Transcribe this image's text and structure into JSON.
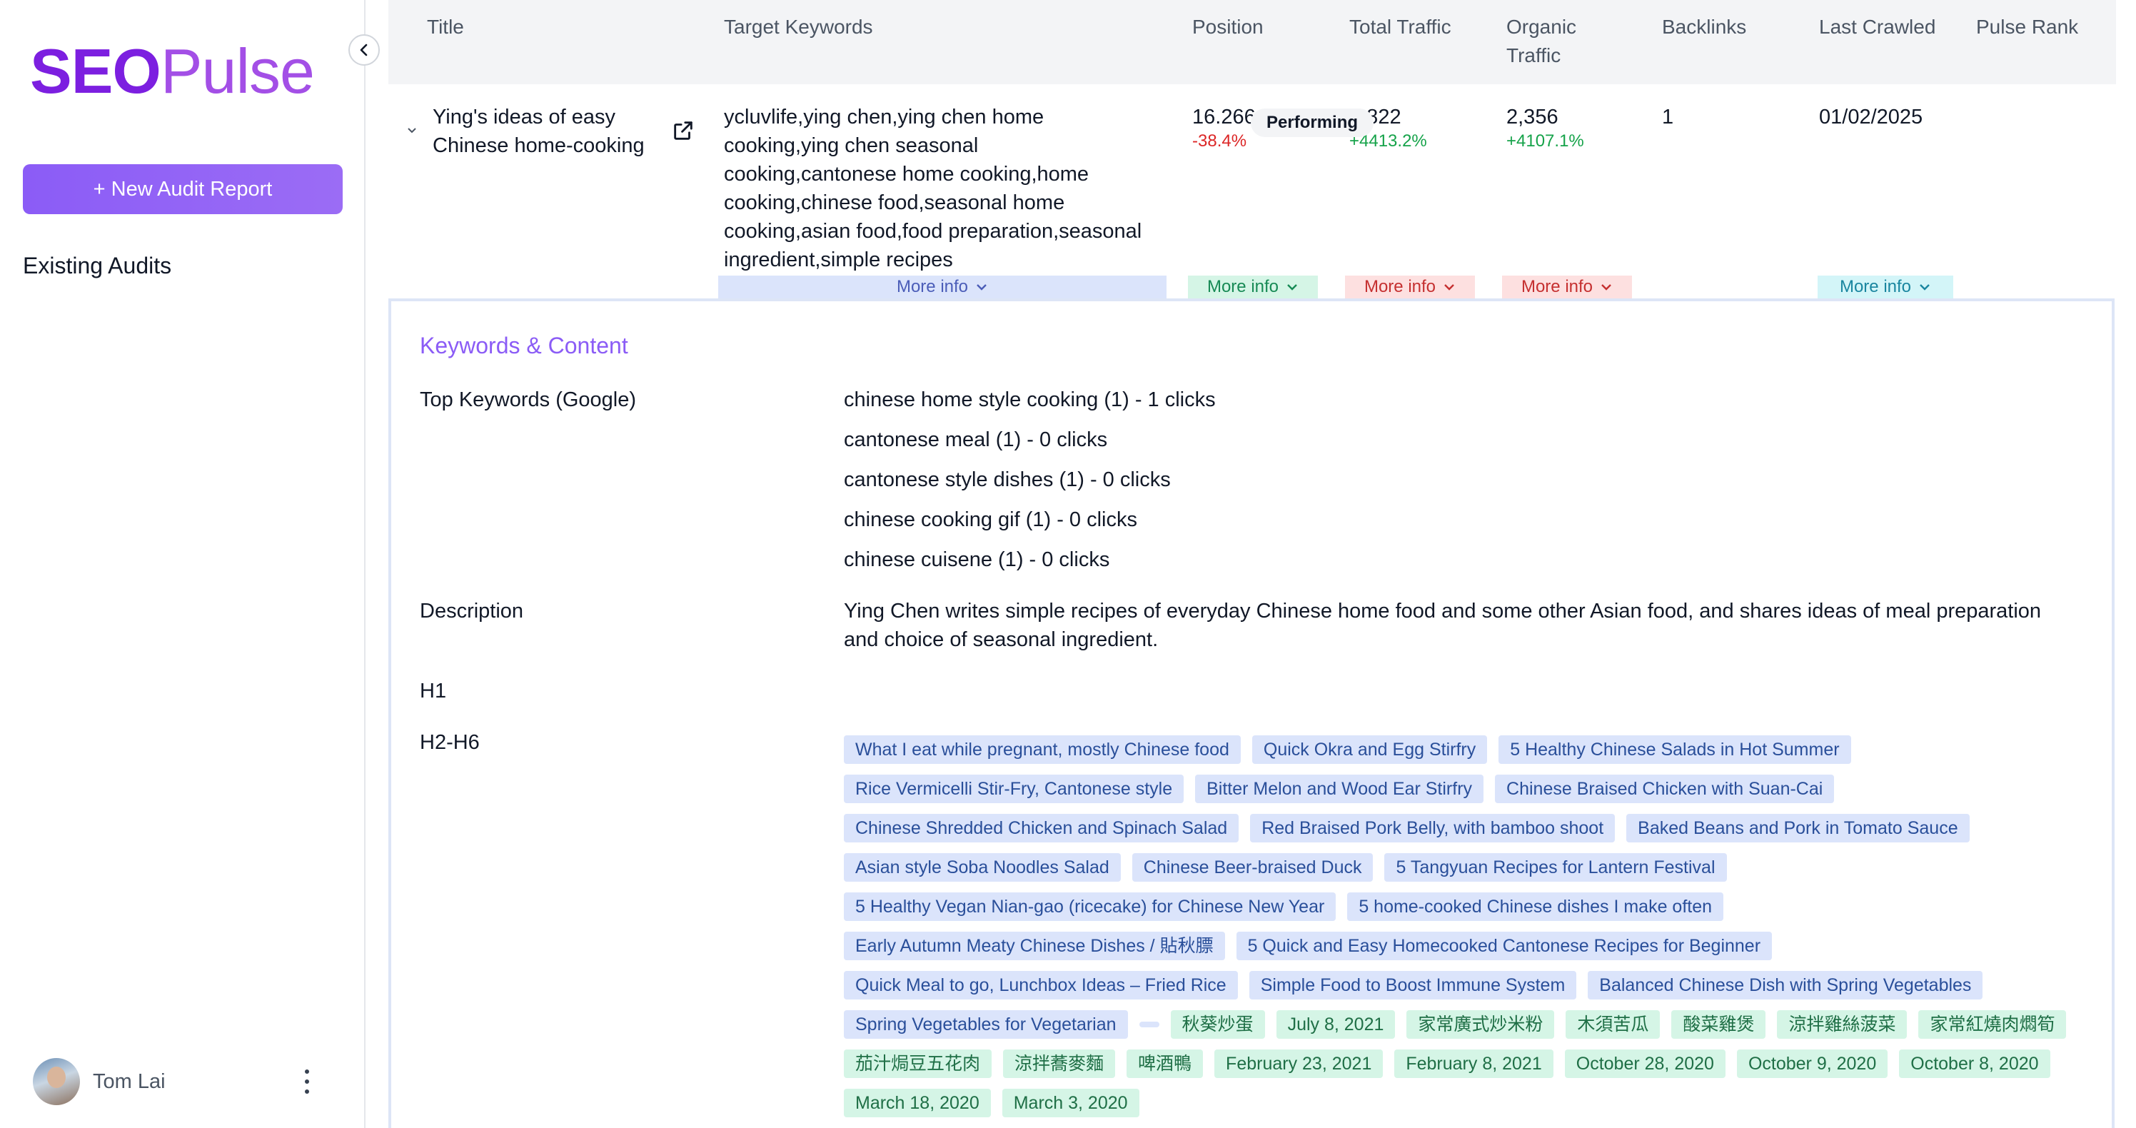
{
  "brand": {
    "seo": "SEO",
    "pulse": "Pulse"
  },
  "sidebar": {
    "new_audit_label": "+ New Audit Report",
    "existing_label": "Existing Audits",
    "user_name": "Tom Lai"
  },
  "table": {
    "headers": {
      "title": "Title",
      "keywords": "Target Keywords",
      "position": "Position",
      "total_traffic": "Total Traffic",
      "organic_traffic_1": "Organic",
      "organic_traffic_2": "Traffic",
      "backlinks": "Backlinks",
      "last_crawled": "Last Crawled",
      "pulse_rank": "Pulse Rank"
    },
    "row": {
      "title_1": "Ying's ideas of easy",
      "title_2": "Chinese home-cooking",
      "keywords_lines": [
        "ycluvlife,ying chen,ying chen home",
        "cooking,ying chen seasonal",
        "cooking,cantonese home cooking,home",
        "cooking,chinese food,seasonal home",
        "cooking,asian food,food preparation,seasonal",
        "ingredient,simple recipes"
      ],
      "position": "16.266",
      "position_delta": "-38.4%",
      "total_traffic": "5,822",
      "total_traffic_delta": "+4413.2%",
      "organic_traffic": "2,356",
      "organic_traffic_delta": "+4107.1%",
      "backlinks": "1",
      "last_crawled": "01/02/2025",
      "pulse_rank": "Performing"
    },
    "more_info_label": "More info"
  },
  "details": {
    "section_title": "Keywords & Content",
    "top_keywords_label": "Top Keywords (Google)",
    "top_keywords": [
      "chinese home style cooking (1) - 1 clicks",
      "cantonese meal (1) - 0 clicks",
      "cantonese style dishes (1) - 0 clicks",
      "chinese cooking gif (1) - 0 clicks",
      "chinese cuisene (1) - 0 clicks"
    ],
    "description_label": "Description",
    "description_1": "Ying Chen writes simple recipes of everyday Chinese home food and some other Asian food, and shares ideas of meal preparation",
    "description_2": "and choice of seasonal ingredient.",
    "h1_label": "H1",
    "h2h6_label": "H2-H6",
    "h2h6_tags": [
      [
        "What I eat while pregnant, mostly Chinese food",
        "Quick Okra and Egg Stirfry",
        "5 Healthy Chinese Salads in Hot Summer"
      ],
      [
        "Rice Vermicelli Stir-Fry, Cantonese style",
        "Bitter Melon and Wood Ear Stirfry",
        "Chinese Braised Chicken with Suan-Cai"
      ],
      [
        "Chinese Shredded Chicken and Spinach Salad",
        "Red Braised Pork Belly, with bamboo shoot",
        "Baked Beans and Pork in Tomato Sauce"
      ],
      [
        "Asian style Soba Noodles Salad",
        "Chinese Beer-braised Duck",
        "5 Tangyuan Recipes for Lantern Festival"
      ],
      [
        "5 Healthy Vegan Nian-gao (ricecake) for Chinese New Year",
        "5 home-cooked Chinese dishes I make often"
      ],
      [
        "Early Autumn Meaty Chinese Dishes / 貼秋膘",
        "5 Quick and Easy Homecooked Cantonese Recipes for Beginner"
      ],
      [
        "Quick Meal to go, Lunchbox Ideas – Fried Rice",
        "Simple Food to Boost Immune System",
        "Balanced Chinese Dish with Spring Vegetables"
      ],
      [
        "Spring Vegetables for Vegetarian"
      ]
    ],
    "green_tags_row8": [
      "秋葵炒蛋",
      "July 8, 2021",
      "家常廣式炒米粉",
      "木須苦瓜",
      "酸菜雞煲",
      "涼拌雞絲菠菜",
      "家常紅燒肉燜筍"
    ],
    "green_tags_row9": [
      "茄汁焗豆五花肉",
      "涼拌蕎麥麵",
      "啤酒鴨",
      "February 23, 2021",
      "February 8, 2021",
      "October 28, 2020",
      "October 9, 2020",
      "October 8, 2020"
    ],
    "green_tags_row10": [
      "March 18, 2020",
      "March 3, 2020"
    ]
  },
  "colors": {
    "brand_purple": "#7c1fe0",
    "accent": "#8b5cf6",
    "negative": "#dc2626",
    "positive": "#16a34a"
  },
  "icons": [
    "chevron-left-icon",
    "external-link-icon",
    "chevron-down-icon",
    "kebab-menu-icon"
  ]
}
